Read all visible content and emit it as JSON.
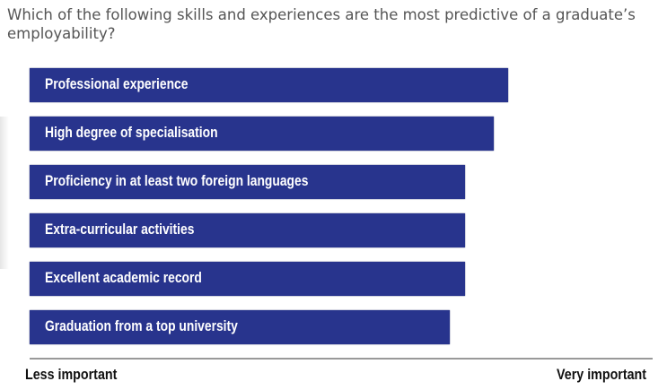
{
  "chart_data": {
    "type": "bar",
    "orientation": "horizontal",
    "title": "Which of the following skills and experiences are the most predictive of a graduate’s employability?",
    "categories": [
      "Professional experience",
      "High degree of specialisation",
      "Proficiency in at least two foreign languages",
      "Extra-curricular activities",
      "Excellent academic record",
      "Graduation from a top university"
    ],
    "values": [
      0.768,
      0.745,
      0.699,
      0.699,
      0.699,
      0.674
    ],
    "xlim": [
      0,
      1
    ],
    "xlabel_min": "Less important",
    "xlabel_max": "Very important",
    "grid": false,
    "bar_color": "#28348d"
  }
}
